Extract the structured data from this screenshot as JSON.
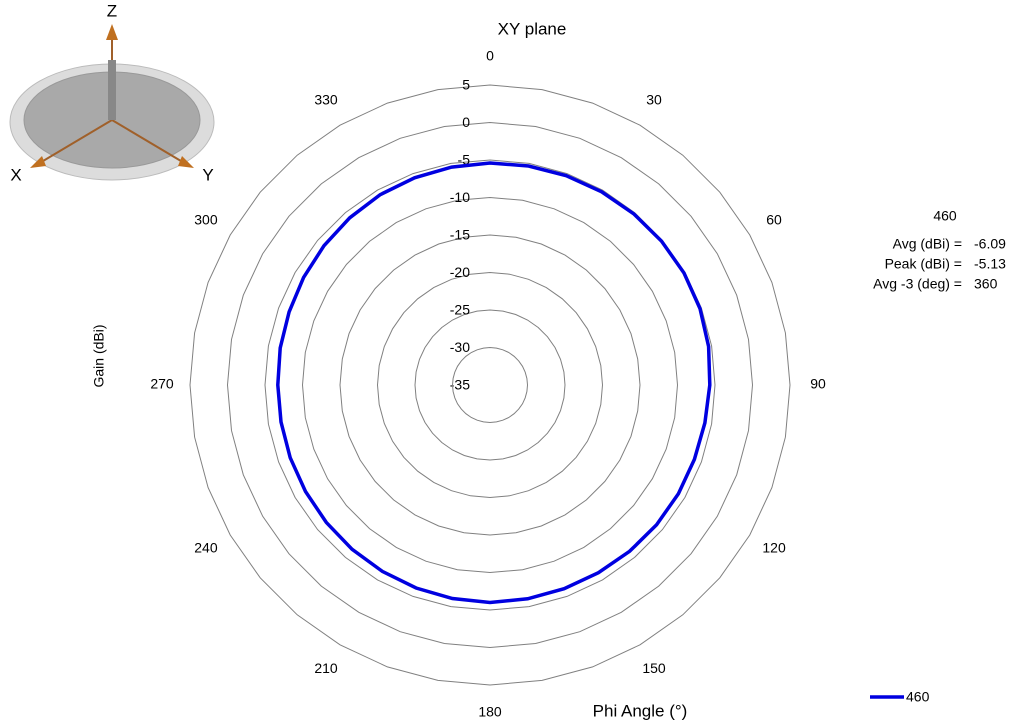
{
  "chart_data": {
    "type": "polar",
    "title": "XY plane",
    "x_label": "Phi  Angle (°)",
    "y_label": "Gain (dBi)",
    "x": [
      0,
      10,
      20,
      30,
      40,
      50,
      60,
      70,
      80,
      90,
      100,
      110,
      120,
      130,
      140,
      150,
      160,
      170,
      180,
      190,
      200,
      210,
      220,
      230,
      240,
      250,
      260,
      270,
      280,
      290,
      300,
      310,
      320,
      330,
      340,
      350
    ],
    "xticks": [
      0,
      30,
      60,
      90,
      120,
      150,
      180,
      210,
      240,
      270,
      300,
      330
    ],
    "ylim": [
      -35,
      5
    ],
    "yticks": [
      -35,
      -30,
      -25,
      -20,
      -15,
      -10,
      -5,
      0,
      5
    ],
    "series": [
      {
        "name": "460",
        "color": "#0000e0",
        "values": [
          -5.4,
          -5.35,
          -5.3,
          -5.25,
          -5.2,
          -5.15,
          -5.13,
          -5.2,
          -5.4,
          -5.7,
          -5.9,
          -6.0,
          -6.0,
          -6.0,
          -6.05,
          -6.1,
          -6.1,
          -6.05,
          -6.0,
          -6.1,
          -6.2,
          -6.3,
          -6.4,
          -6.5,
          -6.6,
          -6.65,
          -6.7,
          -6.7,
          -6.6,
          -6.5,
          -6.3,
          -6.1,
          -5.9,
          -5.7,
          -5.6,
          -5.5
        ]
      }
    ],
    "stats": {
      "title": "460",
      "rows": [
        {
          "label": "Avg (dBi) =",
          "value": -6.09
        },
        {
          "label": "Peak (dBi) =",
          "value": -5.13
        },
        {
          "label": "Avg -3 (deg) =",
          "value": 360
        }
      ]
    }
  },
  "orientation_icon": {
    "axes": [
      "Z",
      "X",
      "Y"
    ]
  }
}
